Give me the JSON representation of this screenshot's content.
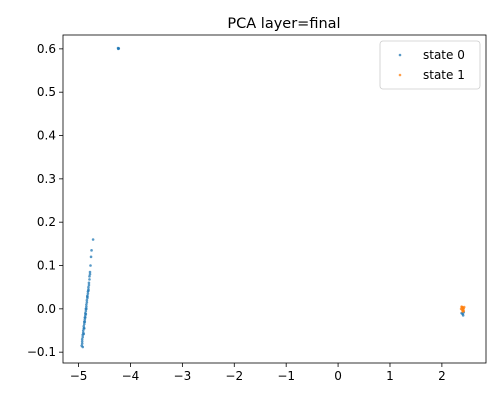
{
  "chart_data": {
    "type": "scatter",
    "title": "PCA layer=final",
    "xlabel": "",
    "ylabel": "",
    "xlim": [
      -5.3,
      2.85
    ],
    "ylim": [
      -0.125,
      0.632
    ],
    "x_ticks": [
      {
        "value": -5,
        "label": "−5"
      },
      {
        "value": -4,
        "label": "−4"
      },
      {
        "value": -3,
        "label": "−3"
      },
      {
        "value": -2,
        "label": "−2"
      },
      {
        "value": -1,
        "label": "−1"
      },
      {
        "value": 0,
        "label": "0"
      },
      {
        "value": 1,
        "label": "1"
      },
      {
        "value": 2,
        "label": "2"
      }
    ],
    "y_ticks": [
      {
        "value": -0.1,
        "label": "−0.1"
      },
      {
        "value": 0.0,
        "label": "0.0"
      },
      {
        "value": 0.1,
        "label": "0.1"
      },
      {
        "value": 0.2,
        "label": "0.2"
      },
      {
        "value": 0.3,
        "label": "0.3"
      },
      {
        "value": 0.4,
        "label": "0.4"
      },
      {
        "value": 0.5,
        "label": "0.5"
      },
      {
        "value": 0.6,
        "label": "0.6"
      }
    ],
    "grid": false,
    "legend": {
      "position": "top-right"
    },
    "series": [
      {
        "name": "state 0",
        "color": "#1f77b4",
        "points": [
          [
            -4.23,
            0.601
          ],
          [
            -4.24,
            0.602
          ],
          [
            -4.235,
            0.6
          ],
          [
            -4.225,
            0.601
          ],
          [
            -4.72,
            0.16
          ],
          [
            -4.75,
            0.135
          ],
          [
            -4.76,
            0.12
          ],
          [
            -4.77,
            0.1
          ],
          [
            -4.78,
            0.085
          ],
          [
            -4.78,
            0.08
          ],
          [
            -4.79,
            0.075
          ],
          [
            -4.79,
            0.068
          ],
          [
            -4.8,
            0.06
          ],
          [
            -4.8,
            0.055
          ],
          [
            -4.81,
            0.05
          ],
          [
            -4.81,
            0.045
          ],
          [
            -4.82,
            0.04
          ],
          [
            -4.82,
            0.035
          ],
          [
            -4.83,
            0.03
          ],
          [
            -4.83,
            0.025
          ],
          [
            -4.84,
            0.02
          ],
          [
            -4.84,
            0.015
          ],
          [
            -4.85,
            0.01
          ],
          [
            -4.85,
            0.005
          ],
          [
            -4.86,
            0.0
          ],
          [
            -4.86,
            -0.005
          ],
          [
            -4.87,
            -0.01
          ],
          [
            -4.87,
            -0.015
          ],
          [
            -4.88,
            -0.02
          ],
          [
            -4.88,
            -0.025
          ],
          [
            -4.89,
            -0.03
          ],
          [
            -4.89,
            -0.035
          ],
          [
            -4.9,
            -0.04
          ],
          [
            -4.9,
            -0.045
          ],
          [
            -4.91,
            -0.05
          ],
          [
            -4.91,
            -0.055
          ],
          [
            -4.92,
            -0.06
          ],
          [
            -4.92,
            -0.065
          ],
          [
            -4.93,
            -0.07
          ],
          [
            -4.93,
            -0.075
          ],
          [
            -4.93,
            -0.08
          ],
          [
            -4.94,
            -0.085
          ],
          [
            -4.92,
            -0.088
          ],
          [
            -4.83,
            0.028
          ],
          [
            -4.85,
            0.0
          ],
          [
            -4.87,
            -0.02
          ],
          [
            -4.89,
            -0.045
          ],
          [
            -4.81,
            0.042
          ],
          [
            -4.86,
            -0.012
          ],
          [
            -4.9,
            -0.058
          ],
          [
            -4.88,
            -0.03
          ],
          [
            2.4,
            -0.012
          ],
          [
            2.42,
            -0.008
          ],
          [
            2.38,
            -0.01
          ],
          [
            2.41,
            -0.015
          ]
        ]
      },
      {
        "name": "state 1",
        "color": "#ff7f0e",
        "points": [
          [
            2.38,
            0.005
          ],
          [
            2.4,
            0.003
          ],
          [
            2.42,
            0.001
          ],
          [
            2.39,
            -0.002
          ],
          [
            2.41,
            -0.004
          ],
          [
            2.4,
            -0.006
          ],
          [
            2.43,
            0.004
          ],
          [
            2.37,
            0.0
          ],
          [
            2.4,
            0.002
          ],
          [
            2.41,
            -0.001
          ],
          [
            2.39,
            0.004
          ],
          [
            2.42,
            -0.005
          ]
        ]
      }
    ]
  }
}
